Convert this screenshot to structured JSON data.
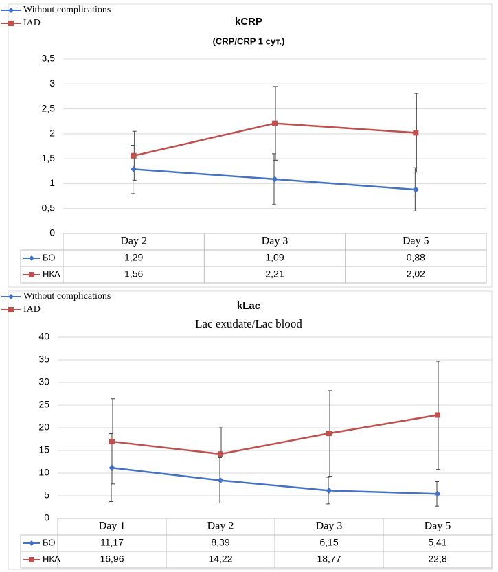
{
  "colors": {
    "blue": "#4472C4",
    "red": "#C0504D",
    "grid": "#D9D9D9",
    "axis": "#BFBFBF",
    "text": "#000000"
  },
  "chart_data": [
    {
      "type": "line",
      "title": "kCRP",
      "subtitle": "(CRP/CRP 1 сут.)",
      "legend": {
        "placement": "top-left",
        "entries": [
          "Without complications",
          "IAD"
        ]
      },
      "categories": [
        "Day 2",
        "Day 3",
        "Day 5"
      ],
      "ylim": [
        0,
        3.5
      ],
      "yticks": [
        "0",
        "0,5",
        "1",
        "1,5",
        "2",
        "2,5",
        "3",
        "3,5"
      ],
      "ytick_values": [
        0,
        0.5,
        1,
        1.5,
        2,
        2.5,
        3,
        3.5
      ],
      "grid": true,
      "series": [
        {
          "name": "БО",
          "color": "#4472C4",
          "marker": "diamond",
          "values": [
            1.29,
            1.09,
            0.88
          ],
          "labels": [
            "1,29",
            "1,09",
            "0,88"
          ],
          "err_low": [
            0.8,
            0.58,
            0.45
          ],
          "err_high": [
            1.77,
            1.6,
            1.32
          ]
        },
        {
          "name": "НКА",
          "color": "#C0504D",
          "marker": "square",
          "values": [
            1.56,
            2.21,
            2.02
          ],
          "labels": [
            "1,56",
            "2,21",
            "2,02"
          ],
          "err_low": [
            1.07,
            1.47,
            1.23
          ],
          "err_high": [
            2.05,
            2.95,
            2.81
          ]
        }
      ]
    },
    {
      "type": "line",
      "title": "kLac",
      "subtitle": "Lac exudate/Lac blood",
      "legend": {
        "placement": "top-left",
        "entries": [
          "Without complications",
          "IAD"
        ]
      },
      "categories": [
        "Day 1",
        "Day 2",
        "Day 3",
        "Day 5"
      ],
      "ylim": [
        0,
        40
      ],
      "yticks": [
        "0",
        "5",
        "10",
        "15",
        "20",
        "25",
        "30",
        "35",
        "40"
      ],
      "ytick_values": [
        0,
        5,
        10,
        15,
        20,
        25,
        30,
        35,
        40
      ],
      "grid": true,
      "series": [
        {
          "name": "БО",
          "color": "#4472C4",
          "marker": "diamond",
          "values": [
            11.17,
            8.39,
            6.15,
            5.41
          ],
          "labels": [
            "11,17",
            "8,39",
            "6,15",
            "5,41"
          ],
          "err_low": [
            3.7,
            3.4,
            3.2,
            2.7
          ],
          "err_high": [
            18.7,
            13.4,
            9.1,
            8.1
          ]
        },
        {
          "name": "НКА",
          "color": "#C0504D",
          "marker": "square",
          "values": [
            16.96,
            14.22,
            18.77,
            22.8
          ],
          "labels": [
            "16,96",
            "14,22",
            "18,77",
            "22,8"
          ],
          "err_low": [
            7.6,
            14.0,
            9.3,
            10.8
          ],
          "err_high": [
            26.4,
            20.0,
            28.2,
            34.7
          ]
        }
      ]
    }
  ]
}
